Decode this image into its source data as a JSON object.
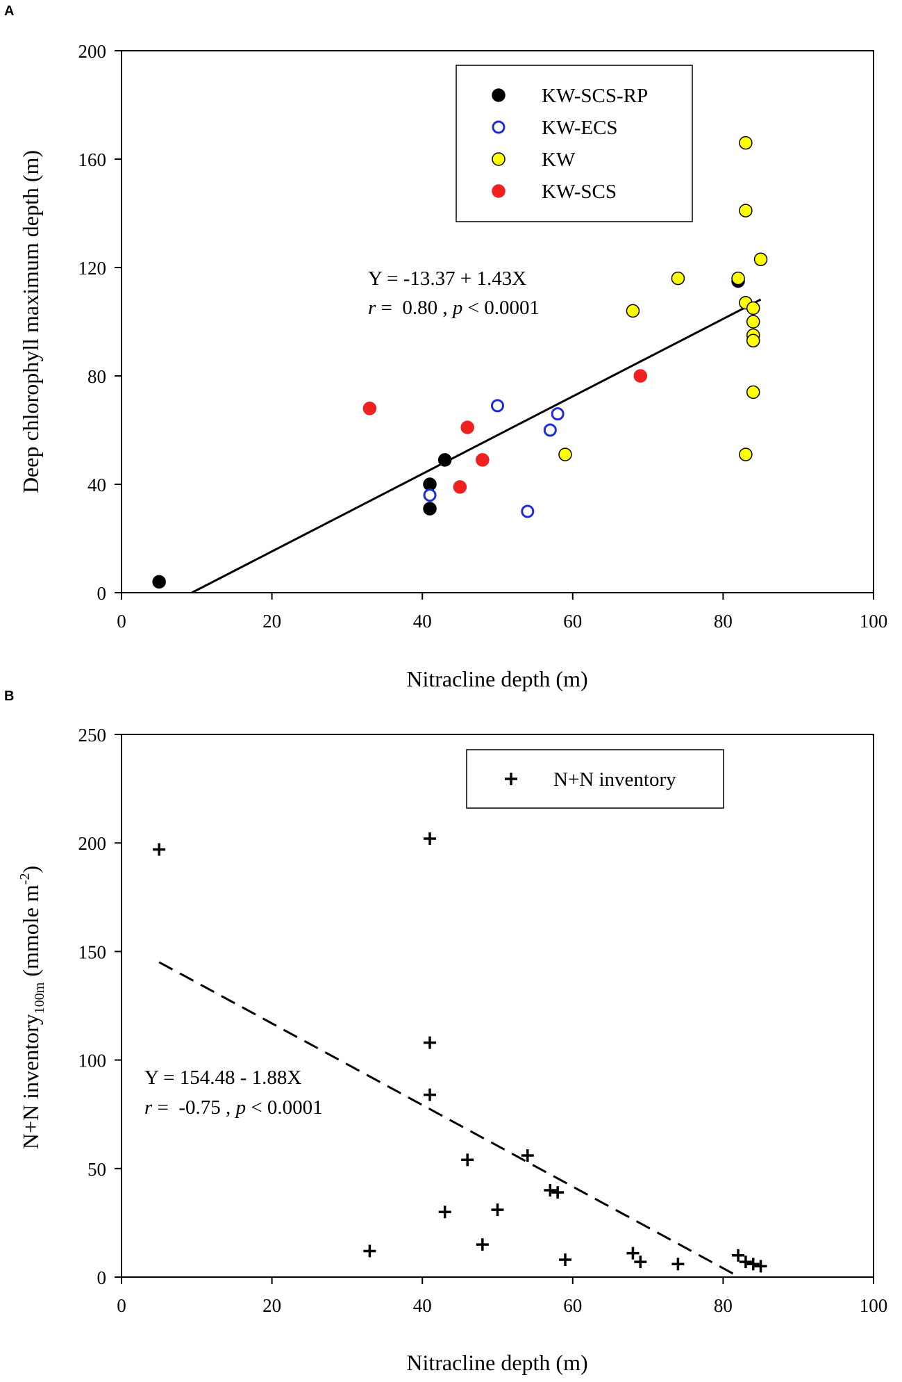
{
  "chart_data": [
    {
      "panel": "A",
      "type": "scatter",
      "xlabel": "Nitracline depth (m)",
      "ylabel": "Deep chlorophyll maximum depth (m)",
      "xlim": [
        0,
        100
      ],
      "ylim": [
        0,
        200
      ],
      "xticks": [
        0,
        20,
        40,
        60,
        80,
        100
      ],
      "yticks": [
        0,
        40,
        80,
        120,
        160,
        200
      ],
      "legend_position": "top-right",
      "series": [
        {
          "name": "KW-SCS-RP",
          "marker": "filled-circle",
          "color": "#000000",
          "points": [
            [
              5,
              4
            ],
            [
              41,
              40
            ],
            [
              41,
              31
            ],
            [
              43,
              49
            ],
            [
              82,
              115
            ]
          ]
        },
        {
          "name": "KW-ECS",
          "marker": "open-circle",
          "color": "#1f2dd6",
          "points": [
            [
              41,
              36
            ],
            [
              50,
              69
            ],
            [
              54,
              30
            ],
            [
              57,
              60
            ],
            [
              58,
              66
            ]
          ]
        },
        {
          "name": "KW",
          "marker": "filled-circle",
          "color": "#ffff00",
          "points": [
            [
              59,
              51
            ],
            [
              68,
              104
            ],
            [
              74,
              116
            ],
            [
              82,
              116
            ],
            [
              83,
              166
            ],
            [
              83,
              141
            ],
            [
              83,
              107
            ],
            [
              83,
              51
            ],
            [
              84,
              105
            ],
            [
              84,
              100
            ],
            [
              84,
              95
            ],
            [
              84,
              93
            ],
            [
              84,
              74
            ],
            [
              85,
              123
            ]
          ]
        },
        {
          "name": "KW-SCS",
          "marker": "filled-circle",
          "color": "#ef2020",
          "points": [
            [
              33,
              68
            ],
            [
              45,
              39
            ],
            [
              46,
              61
            ],
            [
              48,
              49
            ],
            [
              69,
              80
            ]
          ]
        }
      ],
      "regression": {
        "style": "solid",
        "intercept": -13.37,
        "slope": 1.43,
        "x_range": [
          9.35,
          85
        ],
        "equation_text": "Y = -13.37 + 1.43X",
        "stats_r_label": "r",
        "stats_r_text": " =  0.80 , ",
        "stats_p_label": "p",
        "stats_p_text": " < 0.0001"
      }
    },
    {
      "panel": "B",
      "type": "scatter",
      "xlabel": "Nitracline depth (m)",
      "ylabel_main": "N+N inventory",
      "ylabel_sub": "100m",
      "ylabel_unit": " (mmole m",
      "ylabel_sup": "-2",
      "ylabel_close": ")",
      "xlim": [
        0,
        100
      ],
      "ylim": [
        0,
        250
      ],
      "xticks": [
        0,
        20,
        40,
        60,
        80,
        100
      ],
      "yticks": [
        0,
        50,
        100,
        150,
        200,
        250
      ],
      "legend_position": "top-right",
      "series": [
        {
          "name": "N+N inventory",
          "marker": "plus",
          "color": "#000000",
          "points": [
            [
              5,
              197
            ],
            [
              33,
              12
            ],
            [
              41,
              202
            ],
            [
              41,
              108
            ],
            [
              41,
              84
            ],
            [
              43,
              30
            ],
            [
              46,
              54
            ],
            [
              48,
              15
            ],
            [
              50,
              31
            ],
            [
              54,
              56
            ],
            [
              57,
              40
            ],
            [
              58,
              39
            ],
            [
              59,
              8
            ],
            [
              68,
              11
            ],
            [
              69,
              7
            ],
            [
              74,
              6
            ],
            [
              82,
              10
            ],
            [
              83,
              7
            ],
            [
              84,
              6
            ],
            [
              85,
              5
            ]
          ]
        }
      ],
      "regression": {
        "style": "dashed",
        "intercept": 154.48,
        "slope": -1.88,
        "x_range": [
          5,
          82.17
        ],
        "equation_text": "Y = 154.48 - 1.88X",
        "stats_r_label": "r",
        "stats_r_text": " =  -0.75 , ",
        "stats_p_label": "p",
        "stats_p_text": " < 0.0001"
      }
    }
  ]
}
